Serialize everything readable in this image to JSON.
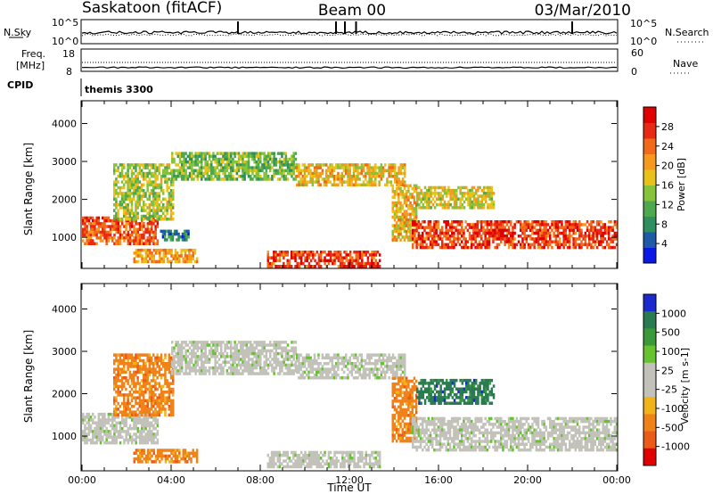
{
  "header": {
    "station": "Saskatoon (fitACF)",
    "beam": "Beam 00",
    "date": "03/Mar/2010"
  },
  "top_panels": {
    "nsky_label": "N.Sky",
    "nsearch_label": "N.Search",
    "nsky_ticks": [
      "10^5",
      "10^0"
    ],
    "nsearch_ticks": [
      "10^5",
      "10^0"
    ],
    "freq_label_1": "Freq.",
    "freq_label_2": "[MHz]",
    "freq_ticks": [
      "18",
      "8"
    ],
    "nave_label": "Nave",
    "nave_ticks": [
      "60",
      "0"
    ],
    "cpid_label": "CPID",
    "cpid_value": "themis 3300"
  },
  "colors": {
    "power_scale": [
      "#0a18e6",
      "#1e5aa8",
      "#2f8f5e",
      "#4ea84e",
      "#86c23a",
      "#e8c21a",
      "#f59a1e",
      "#f06a1a",
      "#e82a14",
      "#e00000"
    ],
    "velocity_scale": [
      "#1a2acc",
      "#2a7a52",
      "#3a9a3a",
      "#66c22e",
      "#c2c2ba",
      "#c2c2ba",
      "#f0b418",
      "#f0821a",
      "#ec5a18",
      "#e00000"
    ]
  },
  "chart_data": [
    {
      "type": "heatmap",
      "title": "Power",
      "xlabel": "",
      "ylabel": "Slant Range [km]",
      "x_range_hours": [
        0,
        24
      ],
      "ylim": [
        180,
        4600
      ],
      "yticks": [
        "1000",
        "2000",
        "3000",
        "4000"
      ],
      "colorbar": {
        "label": "Power [dB]",
        "ticks": [
          "4",
          "8",
          "12",
          "16",
          "20",
          "24",
          "28"
        ],
        "range": [
          0,
          30
        ]
      },
      "echo_regions": [
        {
          "name": "near-range band",
          "t": [
            0,
            3.4
          ],
          "r": [
            850,
            1550
          ],
          "value_db": 24
        },
        {
          "name": "arc",
          "t": [
            1.4,
            4.1
          ],
          "r": [
            1500,
            2950
          ],
          "value_db": 14
        },
        {
          "name": "low patch",
          "t": [
            2.3,
            5.2
          ],
          "r": [
            380,
            700
          ],
          "value_db": 20
        },
        {
          "name": "mid patch",
          "t": [
            3.5,
            4.8
          ],
          "r": [
            950,
            1200
          ],
          "value_db": 6
        },
        {
          "name": "upper arc",
          "t": [
            4.0,
            9.6
          ],
          "r": [
            2500,
            3250
          ],
          "value_db": 12
        },
        {
          "name": "upper band",
          "t": [
            9.6,
            14.5
          ],
          "r": [
            2400,
            2950
          ],
          "value_db": 18
        },
        {
          "name": "low central band",
          "t": [
            8.3,
            13.4
          ],
          "r": [
            250,
            650
          ],
          "value_db": 26
        },
        {
          "name": "steep ramp",
          "t": [
            13.9,
            15.0
          ],
          "r": [
            900,
            2400
          ],
          "value_db": 18
        },
        {
          "name": "late band",
          "t": [
            14.8,
            24.0
          ],
          "r": [
            700,
            1450
          ],
          "value_db": 26
        },
        {
          "name": "late upper",
          "t": [
            15.0,
            18.5
          ],
          "r": [
            1750,
            2350
          ],
          "value_db": 16
        }
      ]
    },
    {
      "type": "heatmap",
      "title": "Velocity",
      "xlabel": "Time UT",
      "ylabel": "Slant Range [km]",
      "x_range_hours": [
        0,
        24
      ],
      "xticks": [
        "00:00",
        "04:00",
        "08:00",
        "12:00",
        "16:00",
        "20:00",
        "00:00"
      ],
      "ylim": [
        180,
        4600
      ],
      "yticks": [
        "1000",
        "2000",
        "3000",
        "4000"
      ],
      "colorbar": {
        "label": "Velocity [m s-1]",
        "ticks": [
          "1000",
          "500",
          "100",
          "25",
          "-25",
          "-100",
          "-500",
          "-1000"
        ]
      },
      "echo_regions": [
        {
          "name": "near-range band",
          "t": [
            0,
            3.4
          ],
          "r": [
            850,
            1550
          ],
          "value_ms": -10
        },
        {
          "name": "arc",
          "t": [
            1.4,
            4.1
          ],
          "r": [
            1500,
            2950
          ],
          "value_ms": -200
        },
        {
          "name": "low patch",
          "t": [
            2.3,
            5.2
          ],
          "r": [
            380,
            700
          ],
          "value_ms": -150
        },
        {
          "name": "upper arc",
          "t": [
            4.0,
            9.6
          ],
          "r": [
            2500,
            3250
          ],
          "value_ms": 0
        },
        {
          "name": "upper band",
          "t": [
            9.6,
            14.5
          ],
          "r": [
            2400,
            2950
          ],
          "value_ms": 0
        },
        {
          "name": "low central band",
          "t": [
            8.3,
            13.4
          ],
          "r": [
            250,
            650
          ],
          "value_ms": 20
        },
        {
          "name": "steep ramp",
          "t": [
            13.9,
            15.0
          ],
          "r": [
            900,
            2400
          ],
          "value_ms": -300
        },
        {
          "name": "late band",
          "t": [
            14.8,
            24.0
          ],
          "r": [
            700,
            1450
          ],
          "value_ms": 0
        },
        {
          "name": "late upper",
          "t": [
            15.0,
            18.5
          ],
          "r": [
            1750,
            2350
          ],
          "value_ms": 200
        }
      ]
    }
  ]
}
